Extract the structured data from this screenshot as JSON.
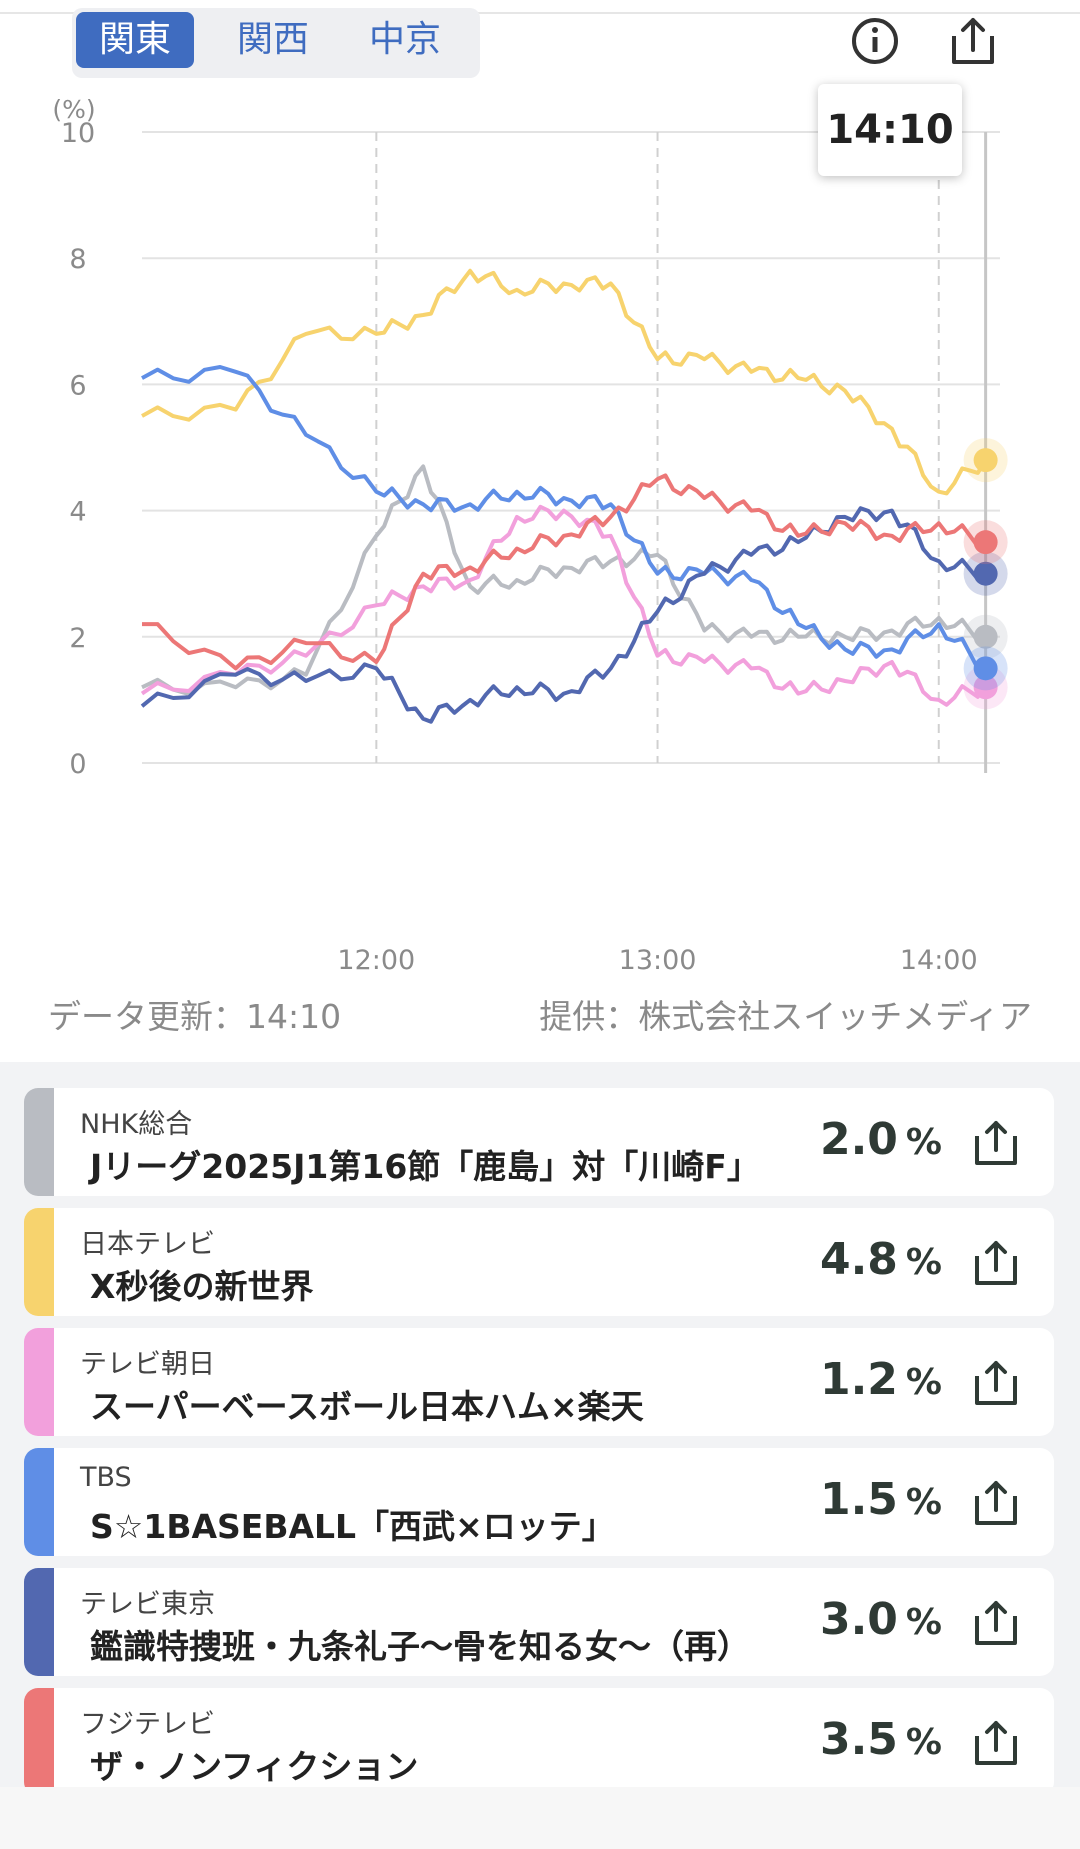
{
  "region_tabs": [
    {
      "label": "関東",
      "active": true
    },
    {
      "label": "関西",
      "active": false
    },
    {
      "label": "中京",
      "active": false
    }
  ],
  "icons": {
    "info": "info-icon",
    "share": "share-icon"
  },
  "tooltip_time": "14:10",
  "chart_data": {
    "type": "line",
    "ylabel": "(%)",
    "ylim": [
      0,
      10
    ],
    "yticks": [
      "0",
      "2",
      "4",
      "6",
      "8",
      "10"
    ],
    "xticks": [
      "12:00",
      "13:00",
      "14:00"
    ],
    "x": [
      "11:10",
      "11:30",
      "11:45",
      "12:00",
      "12:10",
      "12:20",
      "12:30",
      "12:40",
      "12:50",
      "13:00",
      "13:10",
      "13:20",
      "13:30",
      "13:40",
      "13:50",
      "14:00",
      "14:10"
    ],
    "series": [
      {
        "key": "NHK総合",
        "color": "#b9bcc2",
        "values": [
          1.2,
          1.2,
          1.4,
          3.6,
          4.7,
          2.8,
          2.9,
          3.1,
          3.2,
          3.3,
          2.1,
          2.0,
          2.0,
          2.0,
          2.1,
          2.3,
          2.0
        ]
      },
      {
        "key": "日本テレビ",
        "color": "#f7d36e",
        "values": [
          5.5,
          5.6,
          6.8,
          6.8,
          7.1,
          7.8,
          7.5,
          7.6,
          7.6,
          6.4,
          6.4,
          6.2,
          6.1,
          5.9,
          5.3,
          4.3,
          4.8
        ]
      },
      {
        "key": "テレビ朝日",
        "color": "#f2a0dc",
        "values": [
          1.1,
          1.4,
          1.7,
          2.5,
          2.8,
          2.9,
          3.9,
          4.0,
          3.6,
          1.7,
          1.6,
          1.5,
          1.1,
          1.3,
          1.6,
          1.0,
          1.2
        ]
      },
      {
        "key": "TBS",
        "color": "#5f8ee6",
        "values": [
          6.1,
          6.2,
          5.2,
          4.3,
          4.1,
          4.1,
          4.3,
          4.2,
          4.1,
          3.0,
          3.0,
          2.9,
          2.2,
          1.8,
          1.8,
          2.2,
          1.5
        ]
      },
      {
        "key": "テレビ東京",
        "color": "#5268b0",
        "values": [
          0.9,
          1.4,
          1.3,
          1.5,
          0.7,
          1.0,
          1.2,
          1.1,
          1.5,
          2.4,
          3.0,
          3.3,
          3.5,
          3.9,
          4.0,
          3.2,
          3.0
        ]
      },
      {
        "key": "フジテレビ",
        "color": "#ec7777",
        "values": [
          2.2,
          1.5,
          1.9,
          1.6,
          3.0,
          3.1,
          3.4,
          3.6,
          3.9,
          4.5,
          4.2,
          4.0,
          3.6,
          3.8,
          3.6,
          3.8,
          3.5
        ]
      }
    ],
    "grid": true
  },
  "footer": {
    "updated": "データ更新：14:10",
    "provider": "提供：株式会社スイッチメディア"
  },
  "programs": [
    {
      "station": "NHK総合",
      "title": "Jリーグ2025J1第16節「鹿島」対「川崎F」",
      "rate": "2.0",
      "unit": "%",
      "color": "#b9bcc2"
    },
    {
      "station": "日本テレビ",
      "title": "X秒後の新世界",
      "rate": "4.8",
      "unit": "%",
      "color": "#f7d36e"
    },
    {
      "station": "テレビ朝日",
      "title": "スーパーベースボール日本ハム×楽天",
      "rate": "1.2",
      "unit": "%",
      "color": "#f2a0dc"
    },
    {
      "station": "TBS",
      "title": "S☆1BASEBALL「西武×ロッテ」",
      "rate": "1.5",
      "unit": "%",
      "color": "#5f8ee6"
    },
    {
      "station": "テレビ東京",
      "title": "鑑識特捜班・九条礼子～骨を知る女～（再）",
      "rate": "3.0",
      "unit": "%",
      "color": "#5268b0"
    },
    {
      "station": "フジテレビ",
      "title": "ザ・ノンフィクション",
      "rate": "3.5",
      "unit": "%",
      "color": "#ec7777"
    }
  ]
}
